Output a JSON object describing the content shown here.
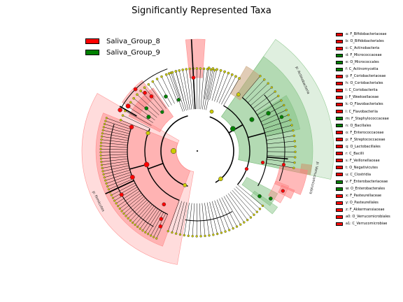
{
  "title": "Significantly Represented Taxa",
  "colors": {
    "enriched_red": "#ff0000",
    "enriched_green": "#008000",
    "node_neutral": "#cccc00",
    "shade_red": "#ff8080",
    "shade_green": "#7fc07f",
    "shade_brown": "#c8a27a"
  },
  "groups": [
    {
      "name": "Saliva_Group_8",
      "color": "#ff0000"
    },
    {
      "name": "Saliva_Group_9",
      "color": "#008000"
    }
  ],
  "taxa": [
    {
      "label": "a: F_Bifidobacteriaceae",
      "group": "Saliva_Group_8"
    },
    {
      "label": "b: O_Bifidobacteriales",
      "group": "Saliva_Group_8"
    },
    {
      "label": "c: C_Actinobacteria",
      "group": "Saliva_Group_8"
    },
    {
      "label": "d: F_Micrococcaceae",
      "group": "Saliva_Group_9"
    },
    {
      "label": "e: O_Micrococcales",
      "group": "Saliva_Group_9"
    },
    {
      "label": "f: C_Actinomycetia",
      "group": "Saliva_Group_9"
    },
    {
      "label": "g: F_Coriobacteriaceae",
      "group": "Saliva_Group_8"
    },
    {
      "label": "h: O_Coriobacteriales",
      "group": "Saliva_Group_8"
    },
    {
      "label": "i: C_Coriobacteriia",
      "group": "Saliva_Group_8"
    },
    {
      "label": "j: F_Weeksellaceae",
      "group": "Saliva_Group_8"
    },
    {
      "label": "k: O_Flavobacteriales",
      "group": "Saliva_Group_8"
    },
    {
      "label": "l: C_Flavobacteriia",
      "group": "Saliva_Group_8"
    },
    {
      "label": "m: F_Staphylococcaceae",
      "group": "Saliva_Group_9"
    },
    {
      "label": "n: O_Bacillales",
      "group": "Saliva_Group_9"
    },
    {
      "label": "o: F_Enterococcaceae",
      "group": "Saliva_Group_8"
    },
    {
      "label": "p: F_Streptococcaceae",
      "group": "Saliva_Group_8"
    },
    {
      "label": "q: O_Lactobacillales",
      "group": "Saliva_Group_8"
    },
    {
      "label": "r: C_Bacilli",
      "group": "Saliva_Group_8"
    },
    {
      "label": "s: F_Veillonellaceae",
      "group": "Saliva_Group_8"
    },
    {
      "label": "t: O_Negativicutes",
      "group": "Saliva_Group_8"
    },
    {
      "label": "u: C_Clostridia",
      "group": "Saliva_Group_8"
    },
    {
      "label": "v: F_Enterobacteriaceae",
      "group": "Saliva_Group_9"
    },
    {
      "label": "w: O_Enterobacterales",
      "group": "Saliva_Group_9"
    },
    {
      "label": "x: F_Pasteurellaceae",
      "group": "Saliva_Group_8"
    },
    {
      "label": "y: O_Pasteurellales",
      "group": "Saliva_Group_8"
    },
    {
      "label": "z: F_Akkermansiaceae",
      "group": "Saliva_Group_8"
    },
    {
      "label": "a0: O_Verrucomicrobiales",
      "group": "Saliva_Group_8"
    },
    {
      "label": "a1: C_Verrucomicrobiae",
      "group": "Saliva_Group_8"
    }
  ],
  "sector_labels": [
    "p: Actinobacteria",
    "p: Verrucomicrobia",
    "p: Firmicutes"
  ]
}
